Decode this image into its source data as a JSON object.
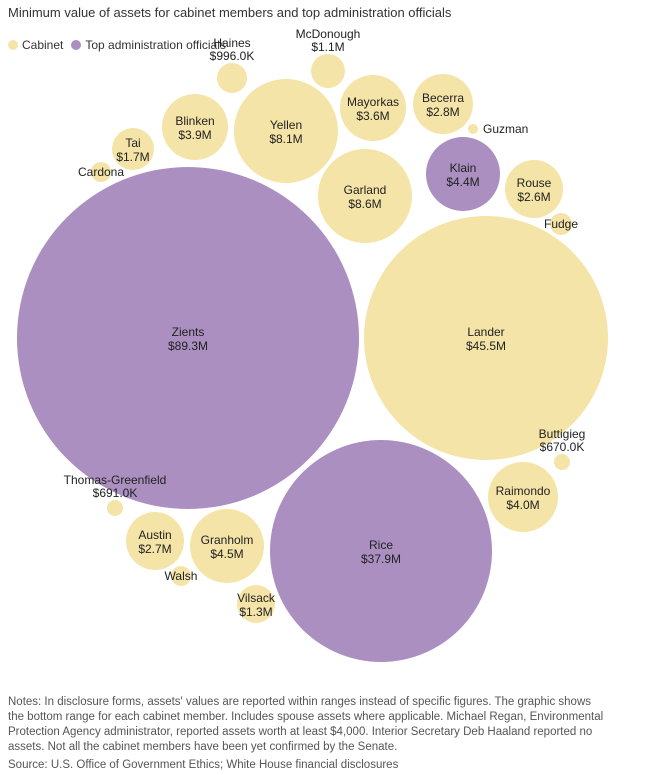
{
  "title": "Minimum value of assets for cabinet members and top administration officials",
  "colors": {
    "cabinet": "#f5e4a7",
    "top": "#ab8fc0"
  },
  "notes": "Notes: In disclosure forms, assets' values are reported within ranges instead of specific figures. The graphic shows the bottom range for each cabinet member. Includes spouse assets where applicable. Michael Regan, Environmental Protection Agency administrator, reported assets worth at least $4,000. Interior Secretary Deb Haaland reported no assets. Not all the cabinet members have been yet confirmed by the Senate.",
  "source": "Source: U.S. Office of Government Ethics; White House financial disclosures",
  "chart_data": {
    "type": "bubble",
    "title": "Minimum value of assets for cabinet members and top administration officials",
    "legend": [
      {
        "name": "Cabinet",
        "group": "cabinet"
      },
      {
        "name": "Top administration officials",
        "group": "top"
      }
    ],
    "legend_position": "top-left",
    "bubbles": [
      {
        "name": "Zients",
        "value": 89.3,
        "label": "$89.3M",
        "group": "top"
      },
      {
        "name": "Lander",
        "value": 45.5,
        "label": "$45.5M",
        "group": "cabinet"
      },
      {
        "name": "Rice",
        "value": 37.9,
        "label": "$37.9M",
        "group": "top"
      },
      {
        "name": "Garland",
        "value": 8.6,
        "label": "$8.6M",
        "group": "cabinet"
      },
      {
        "name": "Yellen",
        "value": 8.1,
        "label": "$8.1M",
        "group": "cabinet"
      },
      {
        "name": "Granholm",
        "value": 4.5,
        "label": "$4.5M",
        "group": "cabinet"
      },
      {
        "name": "Klain",
        "value": 4.4,
        "label": "$4.4M",
        "group": "top"
      },
      {
        "name": "Raimondo",
        "value": 4.0,
        "label": "$4.0M",
        "group": "cabinet"
      },
      {
        "name": "Blinken",
        "value": 3.9,
        "label": "$3.9M",
        "group": "cabinet"
      },
      {
        "name": "Mayorkas",
        "value": 3.6,
        "label": "$3.6M",
        "group": "cabinet"
      },
      {
        "name": "Becerra",
        "value": 2.8,
        "label": "$2.8M",
        "group": "cabinet"
      },
      {
        "name": "Austin",
        "value": 2.7,
        "label": "$2.7M",
        "group": "cabinet"
      },
      {
        "name": "Rouse",
        "value": 2.6,
        "label": "$2.6M",
        "group": "cabinet"
      },
      {
        "name": "Tai",
        "value": 1.7,
        "label": "$1.7M",
        "group": "cabinet"
      },
      {
        "name": "Vilsack",
        "value": 1.3,
        "label": "$1.3M",
        "group": "cabinet"
      },
      {
        "name": "McDonough",
        "value": 1.1,
        "label": "$1.1M",
        "group": "cabinet"
      },
      {
        "name": "Haines",
        "value": 0.996,
        "label": "$996.0K",
        "group": "cabinet"
      },
      {
        "name": "Thomas-Greenfield",
        "value": 0.691,
        "label": "$691.0K",
        "group": "cabinet"
      },
      {
        "name": "Buttigieg",
        "value": 0.67,
        "label": "$670.0K",
        "group": "cabinet"
      },
      {
        "name": "Cardona",
        "value": null,
        "label": "",
        "group": "cabinet"
      },
      {
        "name": "Guzman",
        "value": null,
        "label": "",
        "group": "cabinet"
      },
      {
        "name": "Fudge",
        "value": null,
        "label": "",
        "group": "cabinet"
      },
      {
        "name": "Walsh",
        "value": null,
        "label": "",
        "group": "cabinet"
      }
    ]
  }
}
